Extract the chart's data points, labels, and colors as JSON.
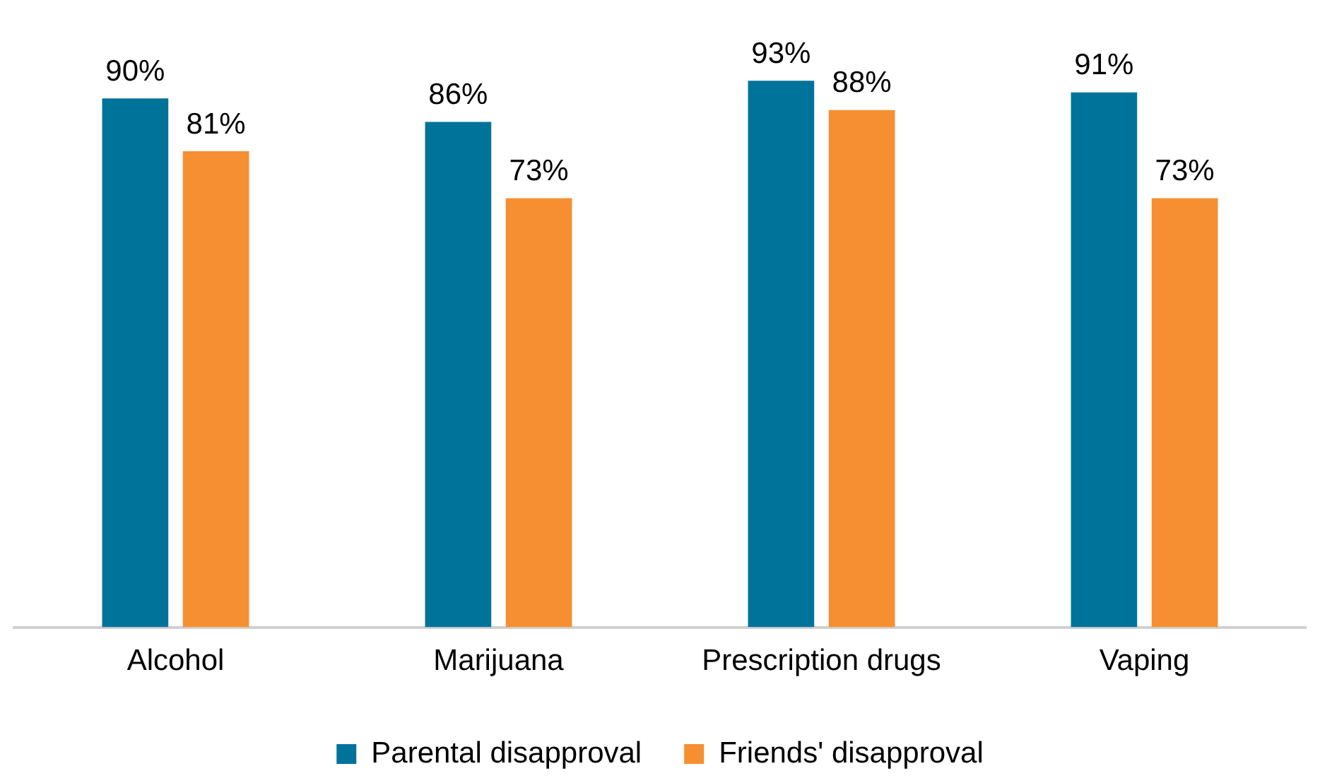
{
  "chart_data": {
    "type": "bar",
    "categories": [
      "Alcohol",
      "Marijuana",
      "Prescription drugs",
      "Vaping"
    ],
    "series": [
      {
        "name": "Parental disapproval",
        "color": "#00739a",
        "values": [
          90,
          86,
          93,
          91
        ],
        "value_labels": [
          "90%",
          "86%",
          "93%",
          "91%"
        ]
      },
      {
        "name": "Friends' disapproval",
        "color": "#f68f31",
        "values": [
          81,
          73,
          88,
          73
        ],
        "value_labels": [
          "81%",
          "73%",
          "88%",
          "73%"
        ]
      }
    ],
    "legend": "bottom",
    "grid": false
  }
}
